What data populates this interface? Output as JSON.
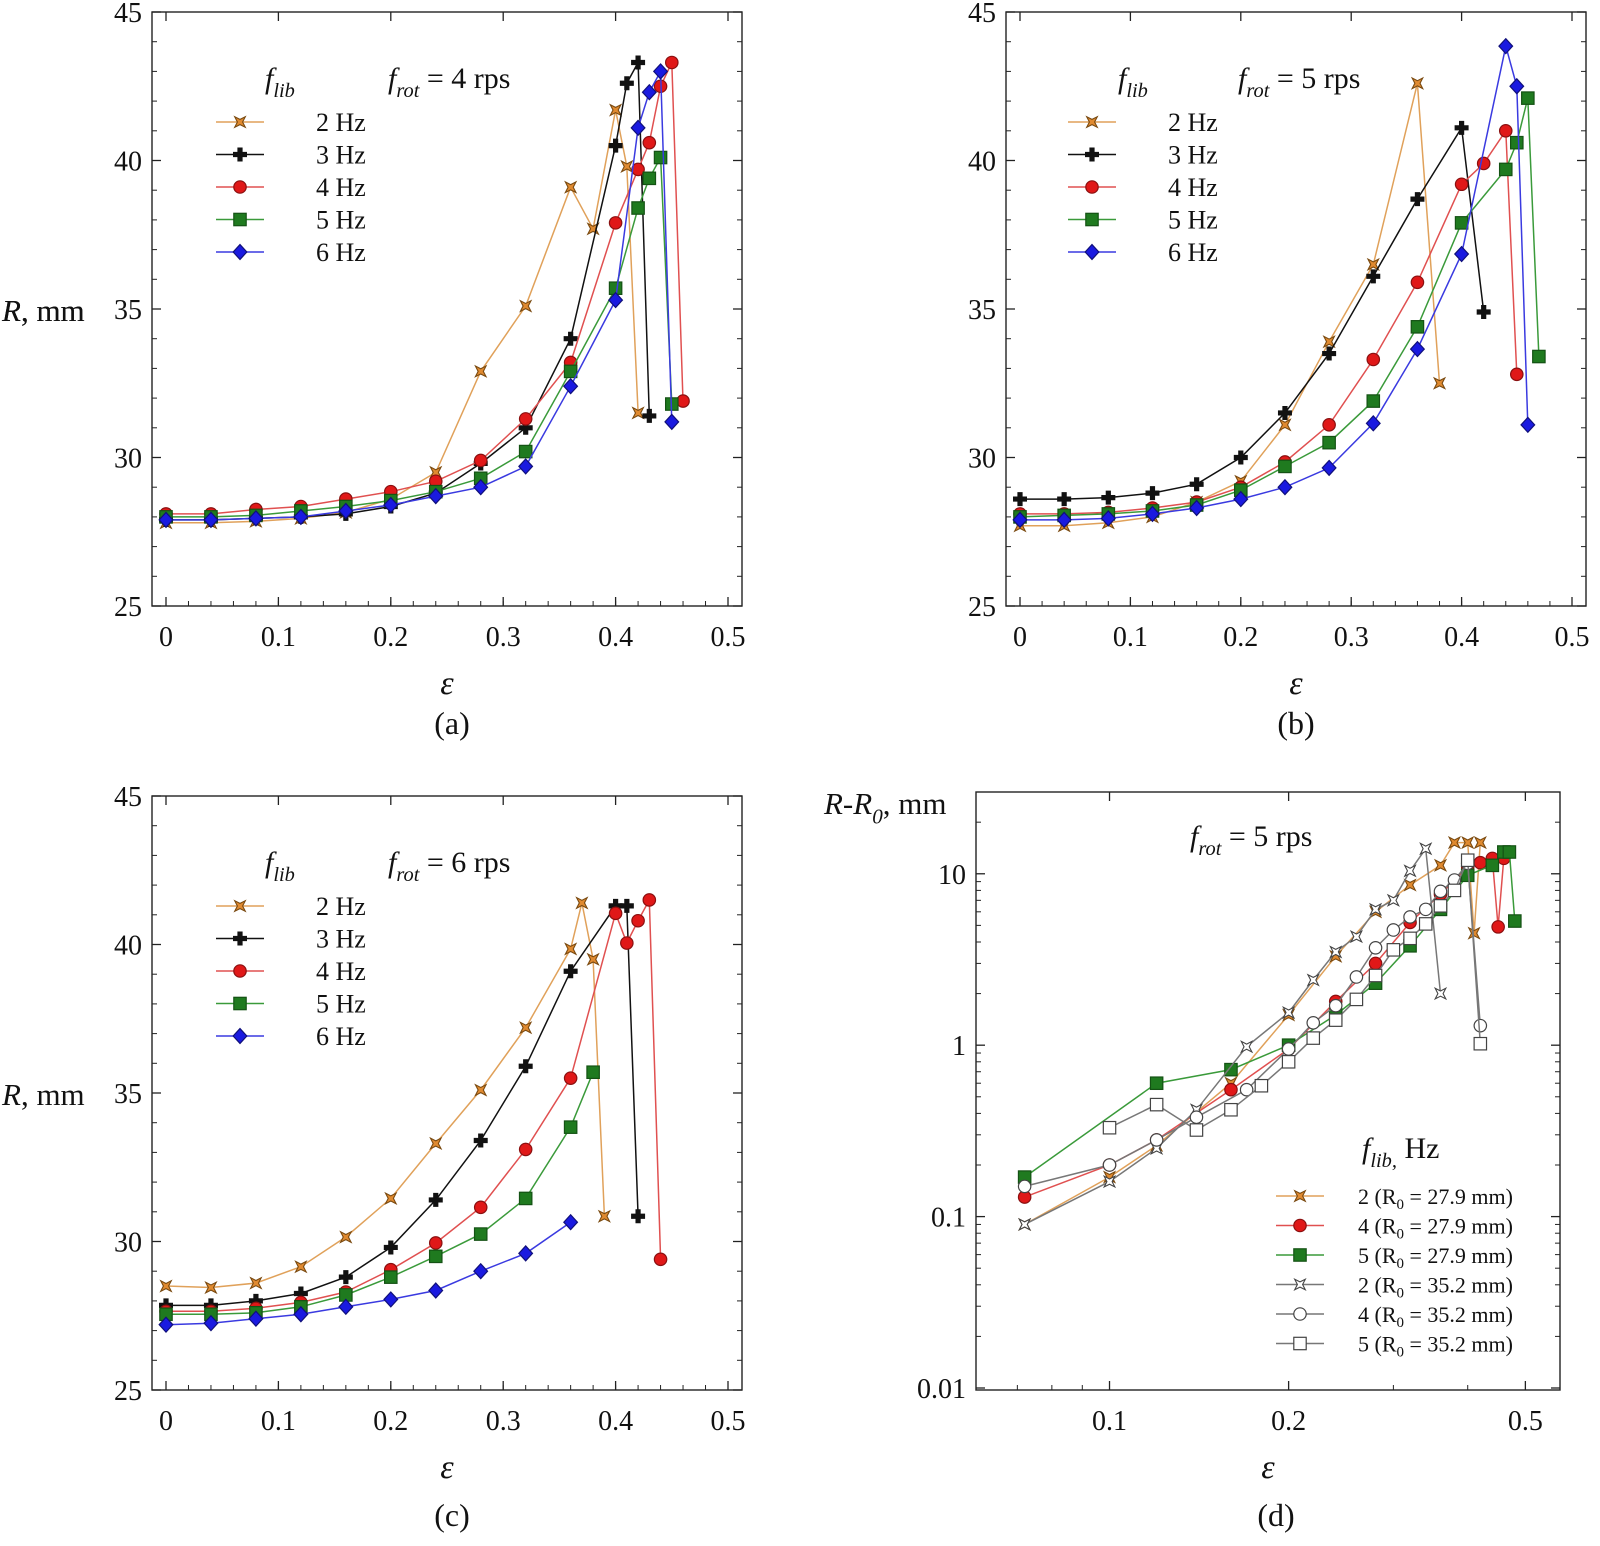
{
  "chart_data": [
    {
      "id": "a",
      "type": "line",
      "panel_label": "(a)",
      "annotation": {
        "symbol": "f",
        "sub": "rot",
        "rest": " = 4 rps"
      },
      "legend_title": {
        "symbol": "f",
        "sub": "lib"
      },
      "ylabel": {
        "symbol": "R",
        "rest": ", mm"
      },
      "xlabel": "ε",
      "xlim": [
        0,
        0.5
      ],
      "ylim": [
        25,
        45
      ],
      "xticks": [
        "0",
        "0.1",
        "0.2",
        "0.3",
        "0.4",
        "0.5"
      ],
      "yticks": [
        "25",
        "30",
        "35",
        "40",
        "45"
      ],
      "series": [
        {
          "name": "2 Hz",
          "color": "#e0a15a",
          "marker": "star",
          "fill": "#e08a30",
          "x": [
            0,
            0.04,
            0.08,
            0.12,
            0.16,
            0.2,
            0.24,
            0.28,
            0.32,
            0.36,
            0.38,
            0.4,
            0.41,
            0.42
          ],
          "y": [
            27.8,
            27.8,
            27.85,
            27.95,
            28.15,
            28.6,
            29.5,
            32.9,
            35.1,
            39.1,
            37.7,
            41.7,
            39.8,
            31.5
          ]
        },
        {
          "name": "3 Hz",
          "color": "#111111",
          "marker": "plus",
          "fill": "#111111",
          "x": [
            0,
            0.04,
            0.08,
            0.12,
            0.16,
            0.2,
            0.24,
            0.28,
            0.32,
            0.36,
            0.4,
            0.41,
            0.42,
            0.43
          ],
          "y": [
            27.9,
            27.9,
            27.95,
            28.0,
            28.1,
            28.35,
            28.8,
            29.8,
            31.0,
            34.0,
            40.5,
            42.6,
            43.3,
            31.4
          ]
        },
        {
          "name": "4 Hz",
          "color": "#e05050",
          "marker": "circle",
          "fill": "#e01818",
          "x": [
            0,
            0.04,
            0.08,
            0.12,
            0.16,
            0.2,
            0.24,
            0.28,
            0.32,
            0.36,
            0.4,
            0.42,
            0.43,
            0.44,
            0.45,
            0.46
          ],
          "y": [
            28.1,
            28.1,
            28.25,
            28.35,
            28.6,
            28.85,
            29.2,
            29.9,
            31.3,
            33.2,
            37.9,
            39.7,
            40.6,
            42.5,
            43.3,
            31.9
          ]
        },
        {
          "name": "5 Hz",
          "color": "#3a9a3a",
          "marker": "square",
          "fill": "#1f7a1f",
          "x": [
            0,
            0.04,
            0.08,
            0.12,
            0.16,
            0.2,
            0.24,
            0.28,
            0.32,
            0.36,
            0.4,
            0.42,
            0.43,
            0.44,
            0.45
          ],
          "y": [
            28.0,
            28.0,
            28.05,
            28.2,
            28.35,
            28.55,
            28.85,
            29.3,
            30.2,
            32.9,
            35.7,
            38.4,
            39.4,
            40.1,
            31.8
          ]
        },
        {
          "name": "6 Hz",
          "color": "#3a3ae0",
          "marker": "diamond",
          "fill": "#1a1ae0",
          "x": [
            0,
            0.04,
            0.08,
            0.12,
            0.16,
            0.2,
            0.24,
            0.28,
            0.32,
            0.36,
            0.4,
            0.42,
            0.43,
            0.44,
            0.45
          ],
          "y": [
            27.9,
            27.9,
            27.95,
            28.0,
            28.2,
            28.4,
            28.7,
            29.0,
            29.7,
            32.4,
            35.3,
            41.1,
            42.3,
            43.0,
            31.2
          ]
        }
      ]
    },
    {
      "id": "b",
      "type": "line",
      "panel_label": "(b)",
      "annotation": {
        "symbol": "f",
        "sub": "rot",
        "rest": " = 5 rps"
      },
      "legend_title": {
        "symbol": "f",
        "sub": "lib"
      },
      "ylabel": {
        "symbol": "R",
        "rest": ", mm"
      },
      "xlabel": "ε",
      "xlim": [
        0,
        0.5
      ],
      "ylim": [
        25,
        45
      ],
      "xticks": [
        "0",
        "0.1",
        "0.2",
        "0.3",
        "0.4",
        "0.5"
      ],
      "yticks": [
        "25",
        "30",
        "35",
        "40",
        "45"
      ],
      "series": [
        {
          "name": "2 Hz",
          "color": "#e0a15a",
          "marker": "star",
          "fill": "#e08a30",
          "x": [
            0,
            0.04,
            0.08,
            0.12,
            0.16,
            0.2,
            0.24,
            0.28,
            0.32,
            0.36,
            0.38
          ],
          "y": [
            27.7,
            27.7,
            27.8,
            28.0,
            28.5,
            29.2,
            31.1,
            33.9,
            36.5,
            42.6,
            32.5
          ]
        },
        {
          "name": "3 Hz",
          "color": "#111111",
          "marker": "plus",
          "fill": "#111111",
          "x": [
            0,
            0.04,
            0.08,
            0.12,
            0.16,
            0.2,
            0.24,
            0.28,
            0.32,
            0.36,
            0.4,
            0.42
          ],
          "y": [
            28.6,
            28.6,
            28.65,
            28.8,
            29.1,
            30.0,
            31.5,
            33.5,
            36.1,
            38.7,
            41.1,
            34.9
          ]
        },
        {
          "name": "4 Hz",
          "color": "#e05050",
          "marker": "circle",
          "fill": "#e01818",
          "x": [
            0,
            0.04,
            0.08,
            0.12,
            0.16,
            0.2,
            0.24,
            0.28,
            0.32,
            0.36,
            0.4,
            0.42,
            0.44,
            0.45
          ],
          "y": [
            28.1,
            28.1,
            28.15,
            28.3,
            28.5,
            29.0,
            29.85,
            31.1,
            33.3,
            35.9,
            39.2,
            39.9,
            41.0,
            32.8
          ]
        },
        {
          "name": "5 Hz",
          "color": "#3a9a3a",
          "marker": "square",
          "fill": "#1f7a1f",
          "x": [
            0,
            0.04,
            0.08,
            0.12,
            0.16,
            0.2,
            0.24,
            0.28,
            0.32,
            0.36,
            0.4,
            0.44,
            0.45,
            0.46,
            0.47
          ],
          "y": [
            28.0,
            28.05,
            28.1,
            28.2,
            28.4,
            28.9,
            29.7,
            30.5,
            31.9,
            34.4,
            37.9,
            39.7,
            40.6,
            42.1,
            33.4
          ]
        },
        {
          "name": "6 Hz",
          "color": "#3a3ae0",
          "marker": "diamond",
          "fill": "#1a1ae0",
          "x": [
            0,
            0.04,
            0.08,
            0.12,
            0.16,
            0.2,
            0.24,
            0.28,
            0.32,
            0.36,
            0.4,
            0.44,
            0.45,
            0.46
          ],
          "y": [
            27.9,
            27.9,
            27.95,
            28.1,
            28.3,
            28.6,
            29.0,
            29.65,
            31.15,
            33.65,
            36.85,
            43.85,
            42.5,
            31.1
          ]
        }
      ]
    },
    {
      "id": "c",
      "type": "line",
      "panel_label": "(c)",
      "annotation": {
        "symbol": "f",
        "sub": "rot",
        "rest": " = 6 rps"
      },
      "legend_title": {
        "symbol": "f",
        "sub": "lib"
      },
      "ylabel": {
        "symbol": "R",
        "rest": ", mm"
      },
      "xlabel": "ε",
      "xlim": [
        0,
        0.5
      ],
      "ylim": [
        25,
        45
      ],
      "xticks": [
        "0",
        "0.1",
        "0.2",
        "0.3",
        "0.4",
        "0.5"
      ],
      "yticks": [
        "25",
        "30",
        "35",
        "40",
        "45"
      ],
      "series": [
        {
          "name": "2 Hz",
          "color": "#e0a15a",
          "marker": "star",
          "fill": "#e08a30",
          "x": [
            0,
            0.04,
            0.08,
            0.12,
            0.16,
            0.2,
            0.24,
            0.28,
            0.32,
            0.36,
            0.37,
            0.38,
            0.39
          ],
          "y": [
            28.5,
            28.45,
            28.6,
            29.15,
            30.15,
            31.45,
            33.3,
            35.1,
            37.2,
            39.85,
            41.4,
            39.5,
            30.85
          ]
        },
        {
          "name": "3 Hz",
          "color": "#111111",
          "marker": "plus",
          "fill": "#111111",
          "x": [
            0,
            0.04,
            0.08,
            0.12,
            0.16,
            0.2,
            0.24,
            0.28,
            0.32,
            0.36,
            0.4,
            0.41,
            0.42
          ],
          "y": [
            27.85,
            27.85,
            28.0,
            28.25,
            28.8,
            29.8,
            31.4,
            33.4,
            35.9,
            39.1,
            41.3,
            41.3,
            30.85
          ]
        },
        {
          "name": "4 Hz",
          "color": "#e05050",
          "marker": "circle",
          "fill": "#e01818",
          "x": [
            0,
            0.04,
            0.08,
            0.12,
            0.16,
            0.2,
            0.24,
            0.28,
            0.32,
            0.36,
            0.4,
            0.41,
            0.42,
            0.43,
            0.44
          ],
          "y": [
            27.65,
            27.65,
            27.75,
            27.95,
            28.3,
            29.05,
            29.95,
            31.15,
            33.1,
            35.5,
            41.05,
            40.05,
            40.8,
            41.5,
            29.4
          ]
        },
        {
          "name": "5 Hz",
          "color": "#3a9a3a",
          "marker": "square",
          "fill": "#1f7a1f",
          "x": [
            0,
            0.04,
            0.08,
            0.12,
            0.16,
            0.2,
            0.24,
            0.28,
            0.32,
            0.36,
            0.38
          ],
          "y": [
            27.55,
            27.55,
            27.6,
            27.8,
            28.2,
            28.8,
            29.5,
            30.25,
            31.45,
            33.85,
            35.7
          ]
        },
        {
          "name": "6 Hz",
          "color": "#3a3ae0",
          "marker": "diamond",
          "fill": "#1a1ae0",
          "x": [
            0,
            0.04,
            0.08,
            0.12,
            0.16,
            0.2,
            0.24,
            0.28,
            0.32,
            0.36
          ],
          "y": [
            27.2,
            27.25,
            27.4,
            27.55,
            27.8,
            28.05,
            28.35,
            29.0,
            29.6,
            30.65
          ]
        }
      ]
    },
    {
      "id": "d",
      "type": "scatter",
      "scale": "log-log",
      "panel_label": "(d)",
      "annotation": {
        "symbol": "f",
        "sub": "rot",
        "rest": " = 5 rps"
      },
      "legend_title": {
        "symbol": "f",
        "sub": "lib,",
        "rest": " Hz"
      },
      "ylabel": {
        "symbol": "R-R",
        "sub": "0",
        "rest": ", mm"
      },
      "xlabel": "ε",
      "xlim": [
        0.062,
        0.55
      ],
      "ylim": [
        0.01,
        30
      ],
      "xticks": [
        "0.1",
        "0.2",
        "0.5"
      ],
      "xtick_values": [
        0.1,
        0.2,
        0.5
      ],
      "yticks": [
        "0.01",
        "0.1",
        "1",
        "10"
      ],
      "ytick_values": [
        0.01,
        0.1,
        1,
        10
      ],
      "series": [
        {
          "name": "2 (R",
          "name_sub": "0",
          "name_rest": " = 27.9 mm)",
          "color": "#e0a15a",
          "marker": "star",
          "fill": "#e08a30",
          "x": [
            0.072,
            0.1,
            0.12,
            0.16,
            0.2,
            0.24,
            0.28,
            0.32,
            0.36,
            0.38,
            0.4,
            0.41,
            0.42
          ],
          "y": [
            0.09,
            0.17,
            0.26,
            0.6,
            1.5,
            3.3,
            6.0,
            8.6,
            11.2,
            15.2,
            15.2,
            4.5,
            15.2
          ]
        },
        {
          "name": "4 (R",
          "name_sub": "0",
          "name_rest": " = 27.9 mm)",
          "color": "#e05050",
          "marker": "circle",
          "fill": "#e01818",
          "x": [
            0.072,
            0.1,
            0.12,
            0.16,
            0.2,
            0.24,
            0.28,
            0.32,
            0.36,
            0.4,
            0.42,
            0.44,
            0.45,
            0.46
          ],
          "y": [
            0.13,
            0.2,
            0.28,
            0.55,
            0.95,
            1.8,
            3.0,
            5.2,
            7.6,
            11.0,
            11.6,
            12.3,
            4.9,
            12.3
          ]
        },
        {
          "name": "5 (R",
          "name_sub": "0",
          "name_rest": " = 27.9 mm)",
          "color": "#3a9a3a",
          "marker": "square",
          "fill": "#1f7a1f",
          "x": [
            0.072,
            0.12,
            0.16,
            0.2,
            0.24,
            0.28,
            0.32,
            0.36,
            0.4,
            0.44,
            0.46,
            0.47,
            0.48
          ],
          "y": [
            0.17,
            0.6,
            0.72,
            1.0,
            1.5,
            2.3,
            3.8,
            6.2,
            9.8,
            11.2,
            13.4,
            13.4,
            5.3
          ]
        },
        {
          "name": "2 (R",
          "name_sub": "0",
          "name_rest": " = 35.2 mm)",
          "color": "#777777",
          "marker": "star-open",
          "fill": "#ffffff",
          "x": [
            0.072,
            0.1,
            0.12,
            0.14,
            0.17,
            0.2,
            0.22,
            0.24,
            0.26,
            0.28,
            0.3,
            0.32,
            0.34,
            0.36
          ],
          "y": [
            0.09,
            0.16,
            0.25,
            0.42,
            0.98,
            1.55,
            2.4,
            3.5,
            4.3,
            6.2,
            7.0,
            10.4,
            14.0,
            2.0
          ]
        },
        {
          "name": "4 (R",
          "name_sub": "0",
          "name_rest": " = 35.2 mm)",
          "color": "#777777",
          "marker": "circle-open",
          "fill": "#ffffff",
          "x": [
            0.072,
            0.1,
            0.12,
            0.14,
            0.17,
            0.2,
            0.22,
            0.24,
            0.26,
            0.28,
            0.3,
            0.32,
            0.34,
            0.36,
            0.38,
            0.4,
            0.42
          ],
          "y": [
            0.15,
            0.2,
            0.28,
            0.38,
            0.55,
            0.95,
            1.35,
            1.7,
            2.5,
            3.7,
            4.7,
            5.6,
            6.2,
            7.9,
            9.2,
            11.5,
            1.3
          ]
        },
        {
          "name": "5 (R",
          "name_sub": "0",
          "name_rest": " = 35.2 mm)",
          "color": "#777777",
          "marker": "square-open",
          "fill": "#ffffff",
          "x": [
            0.1,
            0.12,
            0.14,
            0.16,
            0.18,
            0.2,
            0.22,
            0.24,
            0.26,
            0.28,
            0.3,
            0.32,
            0.34,
            0.36,
            0.38,
            0.4,
            0.42
          ],
          "y": [
            0.33,
            0.45,
            0.32,
            0.42,
            0.58,
            0.8,
            1.1,
            1.4,
            1.85,
            2.55,
            3.6,
            4.2,
            5.1,
            6.5,
            8.0,
            12.0,
            1.02
          ]
        }
      ]
    }
  ]
}
